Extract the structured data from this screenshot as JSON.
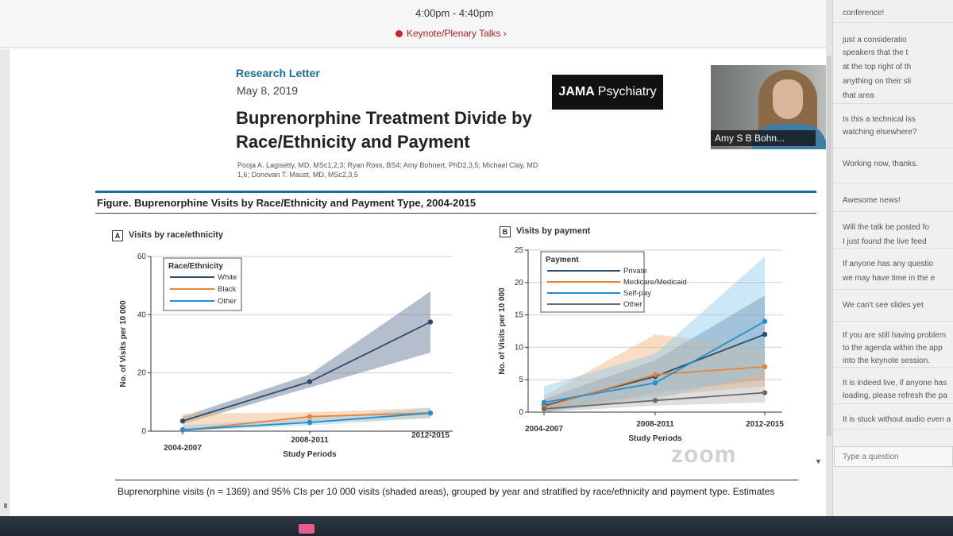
{
  "session": {
    "time": "4:00pm - 4:40pm",
    "link_label": "Keynote/Plenary Talks ›"
  },
  "article": {
    "type": "Research Letter",
    "date": "May 8, 2019",
    "title_line1": "Buprenorphine Treatment Divide by",
    "title_line2": "Race/Ethnicity and Payment",
    "authors_line1": "Pooja A. Lagisetty, MD, MSc1,2,3; Ryan Ross, BS4; Amy Bohnert, PhD2,3,5; Michael Clay, MD",
    "authors_line2": "1,6; Donovan T. Maust, MD, MSc2,3,5",
    "journal_bold": "JAMA",
    "journal_rest": "Psychiatry"
  },
  "video": {
    "participant_name": "Amy S B Bohn..."
  },
  "figure": {
    "title": "Figure. Buprenorphine Visits by Race/Ethnicity and Payment Type, 2004-2015",
    "panel_a_letter": "A",
    "panel_a_title": "Visits by race/ethnicity",
    "panel_b_letter": "B",
    "panel_b_title": "Visits by payment",
    "caption": "Buprenorphine visits (n = 1369) and 95% CIs per 10 000 visits (shaded areas), grouped by year and stratified by race/ethnicity and payment type. Estimates",
    "watermark": "zoom"
  },
  "chart_data": [
    {
      "type": "line",
      "title": "Visits by race/ethnicity",
      "xlabel": "Study Periods",
      "ylabel": "No. of Visits per 10 000",
      "categories": [
        "2004-2007",
        "2008-2011",
        "2012-2015"
      ],
      "ylim": [
        0,
        60
      ],
      "yticks": [
        0,
        20,
        40,
        60
      ],
      "legend_title": "Race/Ethnicity",
      "legend_position": "top-left",
      "grid": "horizontal",
      "series": [
        {
          "name": "White",
          "color": "#2f4d66",
          "values": [
            3.5,
            17,
            37.5
          ],
          "ci_low": [
            2.5,
            15,
            27
          ],
          "ci_high": [
            5,
            19.5,
            48
          ],
          "ci_color": "#5c6f90"
        },
        {
          "name": "Black",
          "color": "#e8843a",
          "values": [
            0.3,
            5,
            6.3
          ],
          "ci_low": [
            0,
            3,
            4.5
          ],
          "ci_high": [
            6,
            6.5,
            8
          ],
          "ci_color": "#f0b27a"
        },
        {
          "name": "Other",
          "color": "#1f8fd0",
          "values": [
            0.5,
            3,
            6.2
          ],
          "ci_low": [
            0,
            2,
            4.5
          ],
          "ci_high": [
            2,
            4.5,
            8
          ],
          "ci_color": "#8ec9ea"
        }
      ]
    },
    {
      "type": "line",
      "title": "Visits by payment",
      "xlabel": "Study Periods",
      "ylabel": "No. of Visits per 10 000",
      "categories": [
        "2004-2007",
        "2008-2011",
        "2012-2015"
      ],
      "ylim": [
        0,
        25
      ],
      "yticks": [
        0,
        5,
        10,
        15,
        20,
        25
      ],
      "legend_title": "Payment",
      "legend_position": "top-left",
      "grid": "horizontal",
      "series": [
        {
          "name": "Private",
          "color": "#2f4d66",
          "values": [
            1,
            5.5,
            12
          ],
          "ci_low": [
            0,
            3,
            5
          ],
          "ci_high": [
            2,
            8,
            18
          ],
          "ci_color": "#5c6f90"
        },
        {
          "name": "Medicare/Medicaid",
          "color": "#e8843a",
          "values": [
            0.8,
            5.8,
            7
          ],
          "ci_low": [
            0,
            2.5,
            4
          ],
          "ci_high": [
            2.5,
            12,
            10
          ],
          "ci_color": "#f0b27a"
        },
        {
          "name": "Self-pay",
          "color": "#1f8fd0",
          "values": [
            1.5,
            4.5,
            14
          ],
          "ci_low": [
            0,
            2,
            6
          ],
          "ci_high": [
            4,
            9,
            24
          ],
          "ci_color": "#8ec9ea"
        },
        {
          "name": "Other",
          "color": "#6d6a6a",
          "values": [
            0.5,
            1.8,
            3
          ],
          "ci_low": [
            0,
            1,
            1.5
          ],
          "ci_high": [
            1,
            3,
            5
          ],
          "ci_color": "#b9b4b4"
        }
      ]
    }
  ],
  "chat": {
    "messages": [
      "conference!",
      "just a consideratio",
      "speakers that the t",
      "at the top right of th",
      "anything on their sli",
      "that area",
      "Is this a technical iss",
      "watching elsewhere?",
      "Working now, thanks.",
      "Awesome news!",
      "Will the talk be posted fo",
      "I just found the live feed",
      "If anyone has any questio",
      "we may have time in the e",
      "We can't see slides yet",
      "If you are still having problem",
      "to the agenda within the app",
      "into the keynote session.",
      "It is indeed live, if anyone has",
      "loading, please refresh the pa",
      "It is stuck without audio even a"
    ],
    "input_placeholder": "Type a question"
  }
}
